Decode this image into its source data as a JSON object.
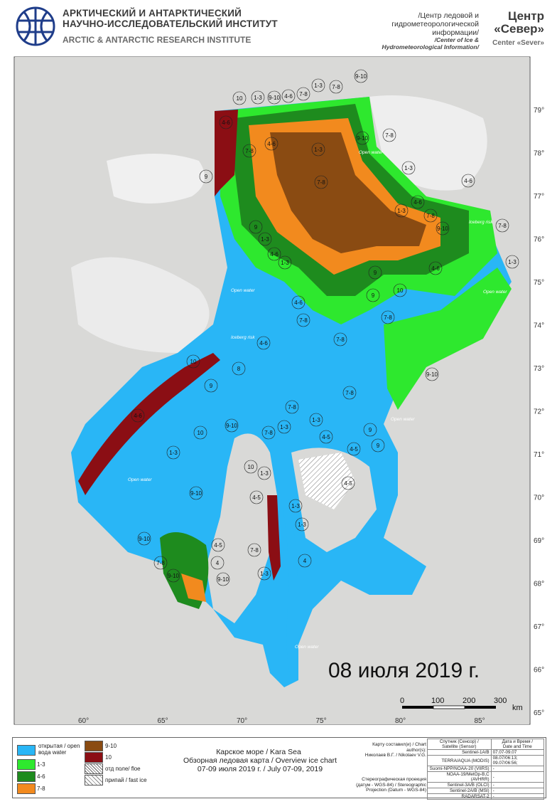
{
  "header": {
    "institute_ru_line1": "АРКТИЧЕСКИЙ И АНТАРКТИЧЕСКИЙ",
    "institute_ru_line2": "НАУЧНО-ИССЛЕДОВАТЕЛЬСКИЙ ИНСТИТУТ",
    "institute_en": "ARCTIC & ANTARCTIC RESEARCH INSTITUTE",
    "center_ru_line1": "/Центр ледовой и",
    "center_ru_line2": "гидрометеорологической",
    "center_ru_line3": "информации/",
    "center_en_line1": "/Center of Ice &",
    "center_en_line2": "Hydrometeorological Information/",
    "sever_ru_line1": "Центр",
    "sever_ru_line2": "«Север»",
    "sever_en": "Center «Sever»"
  },
  "map": {
    "date_stamp": "08 июля 2019 г.",
    "latitudes": [
      "79°",
      "78°",
      "77°",
      "76°",
      "75°",
      "74°",
      "73°",
      "72°",
      "71°",
      "70°",
      "69°",
      "68°",
      "67°",
      "66°",
      "65°"
    ],
    "longitudes": [
      "60°",
      "65°",
      "70°",
      "75°",
      "80°",
      "85°"
    ],
    "scale": {
      "ticks": [
        "0",
        "100",
        "200",
        "300"
      ],
      "unit": "km"
    },
    "open_water_label": "Open water",
    "iceberg_label": "Iceberg risk",
    "ice_labels": [
      "9-10",
      "1-3",
      "9-10",
      "4-6",
      "7-8",
      "1-3",
      "7-8",
      "10",
      "4-6",
      "7-8",
      "9",
      "4-6",
      "1-3",
      "7-8",
      "9-10",
      "1-3",
      "4-6",
      "7-8",
      "4-6",
      "1-3",
      "7-8",
      "9-10",
      "7-8",
      "9",
      "1-3",
      "4-6",
      "1-3",
      "9",
      "4-6",
      "1-3",
      "9",
      "10",
      "4-6",
      "7-8",
      "7-8",
      "4-6",
      "7-8",
      "8",
      "9",
      "9-10",
      "7-8",
      "10",
      "7-8",
      "4-6",
      "9-10",
      "1-3",
      "7-8",
      "1-3",
      "4-5",
      "9",
      "10",
      "1-3",
      "4-5",
      "9",
      "10",
      "1-3",
      "9-10",
      "4-5",
      "4-5",
      "1-3",
      "9-10",
      "7-8",
      "4-5",
      "1-3",
      "7-8",
      "4",
      "9-10",
      "9-10",
      "1-3",
      "4"
    ]
  },
  "legend": {
    "items": [
      {
        "label_ru": "открытая / open",
        "label_en": "вода     water",
        "color": "#29B6F6"
      },
      {
        "label": "1-3",
        "color": "#2EE82E"
      },
      {
        "label": "4-6",
        "color": "#1E8B1E"
      },
      {
        "label": "7-8",
        "color": "#F28A1E"
      },
      {
        "label": "9-10",
        "color": "#8A4B12"
      },
      {
        "label": "10",
        "color": "#8B0E14"
      },
      {
        "label": "отд поле/ floe",
        "color": "#ffffff"
      },
      {
        "label": "припай / fast ice",
        "color": "#ffffff"
      }
    ],
    "title_line1": "Карское море / Kara Sea",
    "title_line2": "Обзорная ледовая карта / Overview ice chart",
    "title_line3": "07-09 июля 2019 г. / July 07-09, 2019",
    "author_label": "Карту составил(и) / Chart author(s):",
    "author_value": "Николаев В.Г. / Nikolaev V.G.",
    "projection_label": "Стереографическая проекция",
    "projection_line2": "(датум - WGS-84) / Stereographic",
    "projection_line3": "Projection (Datum - WGS-84)",
    "table": {
      "header_sat": "Спутник (Сенсор) /",
      "header_sat2": "Satellite (Sensor)",
      "header_date": "Дата и Время /",
      "header_date2": "Date and Time",
      "rows": [
        {
          "sat": "Sentinel-1A/B",
          "date": "07.07-09.07"
        },
        {
          "sat": "TERRA/AQUA (MODIS)",
          "date": "08.07/06:13; 09.07/06:56;"
        },
        {
          "sat": "Suomi-NPP/NOAA-20 (VIIRS)",
          "date": "-"
        },
        {
          "sat": "NOAA-19/MetOp-B,C (AVHRR)",
          "date": "-"
        },
        {
          "sat": "Sentinel-3A/B (OLCI)",
          "date": "-"
        },
        {
          "sat": "Sentinel-2A/B (MSI)",
          "date": "-"
        },
        {
          "sat": "RADARSAT-2",
          "date": "-"
        }
      ]
    }
  }
}
